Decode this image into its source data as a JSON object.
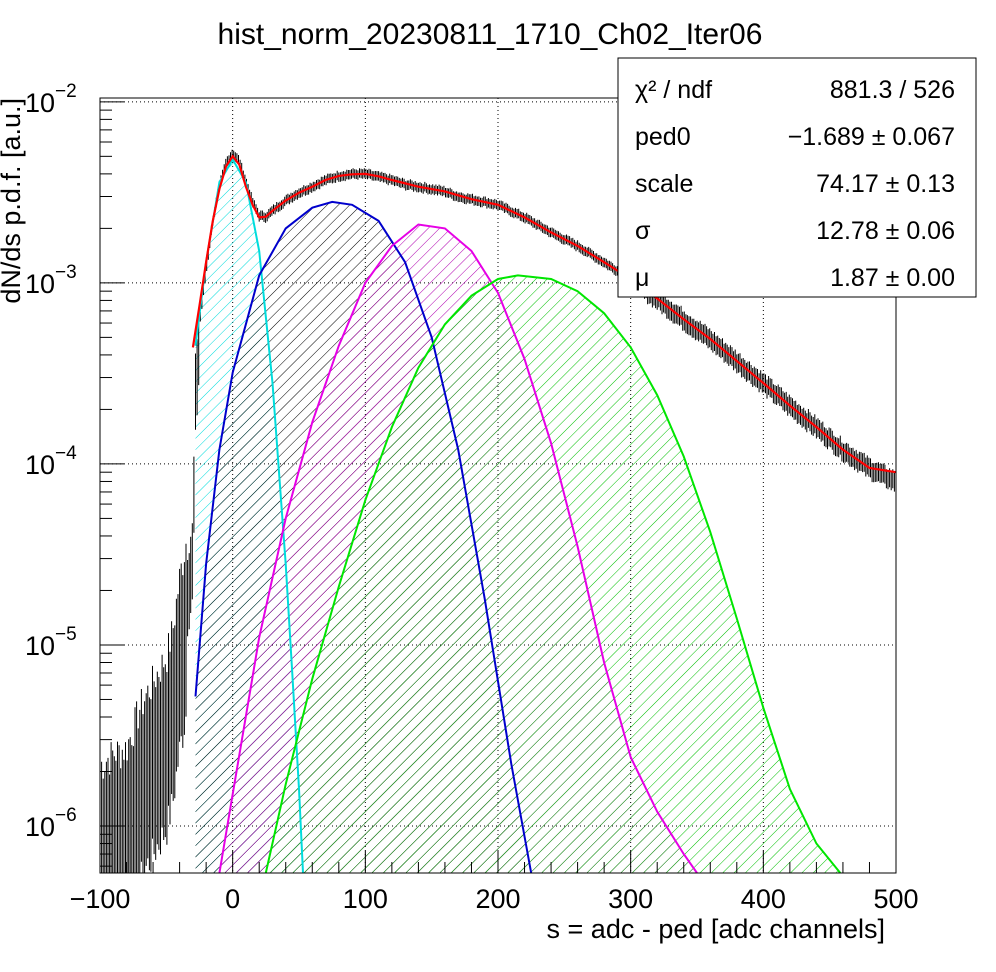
{
  "chart_data": {
    "type": "line",
    "title": "hist_norm_20230811_1710_Ch02_Iter06",
    "xlabel": "s = adc - ped [adc channels]",
    "ylabel": "dN/ds p.d.f. [a.u.]",
    "xlim": [
      -100,
      500
    ],
    "ylim": [
      5.5e-07,
      0.0105
    ],
    "yscale": "log",
    "grid": true,
    "x_ticks": [
      {
        "value": -100,
        "label": "−100"
      },
      {
        "value": 0,
        "label": "0"
      },
      {
        "value": 100,
        "label": "100"
      },
      {
        "value": 200,
        "label": "200"
      },
      {
        "value": 300,
        "label": "300"
      },
      {
        "value": 400,
        "label": "400"
      },
      {
        "value": 500,
        "label": "500"
      }
    ],
    "y_ticks": [
      {
        "value": 0.01,
        "base": "10",
        "exp": "−2"
      },
      {
        "value": 0.001,
        "base": "10",
        "exp": "−3"
      },
      {
        "value": 0.0001,
        "base": "10",
        "exp": "−4"
      },
      {
        "value": 1e-05,
        "base": "10",
        "exp": "−5"
      },
      {
        "value": 1e-06,
        "base": "10",
        "exp": "−6"
      }
    ],
    "stats_box": {
      "placement": "top-right",
      "rows": [
        {
          "label": "χ² / ndf",
          "value": "881.3 / 526"
        },
        {
          "label": "ped0",
          "value": "−1.689 ± 0.067"
        },
        {
          "label": "scale",
          "value": "74.17 ± 0.13"
        },
        {
          "label": "σ",
          "value": "12.78 ± 0.06"
        },
        {
          "label": "μ",
          "value": "1.87 ± 0.00"
        }
      ]
    },
    "series": [
      {
        "kind": "histogram",
        "color": "#000000",
        "x": [
          -100,
          -90,
          -80,
          -70,
          -60,
          -50,
          -45,
          -40,
          -35,
          -30,
          -28,
          -25,
          -20,
          -15,
          -10,
          -5,
          0,
          5,
          10,
          15,
          20,
          25,
          30,
          40,
          50,
          60,
          70,
          80,
          90,
          100,
          110,
          120,
          130,
          140,
          150,
          160,
          170,
          180,
          190,
          200,
          220,
          240,
          260,
          280,
          300,
          320,
          340,
          360,
          380,
          400,
          420,
          440,
          460,
          480,
          500
        ],
        "y": [
          1.2e-06,
          1.4e-06,
          1.5e-06,
          2.5e-06,
          3.5e-06,
          4.8e-06,
          6.8e-06,
          1.3e-05,
          2.1e-05,
          3.2e-05,
          0.00025,
          0.0006,
          0.00118,
          0.0022,
          0.0034,
          0.0046,
          0.0052,
          0.0047,
          0.0036,
          0.0028,
          0.00235,
          0.00232,
          0.0025,
          0.00285,
          0.00315,
          0.0034,
          0.0037,
          0.0039,
          0.004,
          0.004,
          0.00385,
          0.0037,
          0.0035,
          0.0034,
          0.0033,
          0.0032,
          0.003,
          0.0029,
          0.0028,
          0.0027,
          0.0023,
          0.0019,
          0.0016,
          0.0013,
          0.00105,
          0.00082,
          0.00063,
          0.00049,
          0.00037,
          0.00028,
          0.00021,
          0.00016,
          0.00012,
          9.5e-05,
          8e-05
        ]
      },
      {
        "kind": "total-fit",
        "color": "#ff0000",
        "x": [
          -30,
          -25,
          -20,
          -15,
          -10,
          -5,
          0,
          5,
          10,
          15,
          20,
          25,
          30,
          40,
          50,
          60,
          70,
          80,
          90,
          100,
          110,
          120,
          140,
          160,
          180,
          200,
          220,
          240,
          260,
          280,
          300,
          320,
          340,
          360,
          380,
          400,
          420,
          440,
          460,
          480,
          500
        ],
        "y": [
          0.00044,
          0.00075,
          0.0013,
          0.0022,
          0.0033,
          0.0044,
          0.005,
          0.0045,
          0.0034,
          0.0027,
          0.0023,
          0.00232,
          0.0025,
          0.00285,
          0.00315,
          0.0034,
          0.0037,
          0.0039,
          0.00398,
          0.004,
          0.00388,
          0.0037,
          0.0034,
          0.0032,
          0.0029,
          0.0027,
          0.0023,
          0.0019,
          0.0016,
          0.0013,
          0.00105,
          0.00082,
          0.00063,
          0.00049,
          0.00037,
          0.00028,
          0.00021,
          0.00016,
          0.00012,
          9.5e-05,
          9e-05
        ]
      },
      {
        "kind": "component",
        "color": "#00dcdc",
        "pattern": "cyan",
        "x": [
          -28,
          -20,
          -10,
          0,
          10,
          20,
          30,
          40,
          45,
          50,
          53
        ],
        "y": [
          0.00045,
          0.0013,
          0.0036,
          0.0048,
          0.0036,
          0.0015,
          0.00028,
          2.8e-05,
          6.8e-06,
          1.6e-06,
          5.5e-07
        ]
      },
      {
        "kind": "component",
        "color": "#0000cc",
        "pattern": "black",
        "x": [
          -28,
          -20,
          -10,
          0,
          20,
          40,
          60,
          75,
          90,
          110,
          130,
          150,
          170,
          190,
          210,
          225
        ],
        "y": [
          5.2e-06,
          2.8e-05,
          0.00012,
          0.00032,
          0.0011,
          0.002,
          0.0026,
          0.0028,
          0.0027,
          0.0022,
          0.0013,
          0.0005,
          0.00012,
          1.8e-05,
          2.2e-06,
          5.5e-07
        ]
      },
      {
        "kind": "component",
        "color": "#e600e6",
        "pattern": "purple",
        "x": [
          -10,
          0,
          20,
          40,
          60,
          80,
          100,
          120,
          140,
          160,
          180,
          200,
          220,
          240,
          260,
          280,
          300,
          320,
          340,
          350
        ],
        "y": [
          5.5e-07,
          1.5e-06,
          1.1e-05,
          5e-05,
          0.00017,
          0.00045,
          0.001,
          0.0016,
          0.0021,
          0.002,
          0.0015,
          0.00088,
          0.00038,
          0.00013,
          3.5e-05,
          8e-06,
          2.4e-06,
          1.2e-06,
          7e-07,
          5.5e-07
        ]
      },
      {
        "kind": "component",
        "color": "#00e600",
        "pattern": "green",
        "x": [
          25,
          40,
          60,
          80,
          100,
          120,
          140,
          160,
          180,
          200,
          215,
          240,
          260,
          280,
          300,
          320,
          340,
          360,
          380,
          400,
          420,
          440,
          458
        ],
        "y": [
          5.5e-07,
          1.7e-06,
          6.5e-06,
          2.1e-05,
          6.3e-05,
          0.00016,
          0.00034,
          0.00059,
          0.00085,
          0.00105,
          0.0011,
          0.00105,
          0.0009,
          0.00068,
          0.00044,
          0.00024,
          0.00011,
          4.2e-05,
          1.4e-05,
          4.5e-06,
          1.6e-06,
          8e-07,
          5.5e-07
        ]
      }
    ]
  }
}
